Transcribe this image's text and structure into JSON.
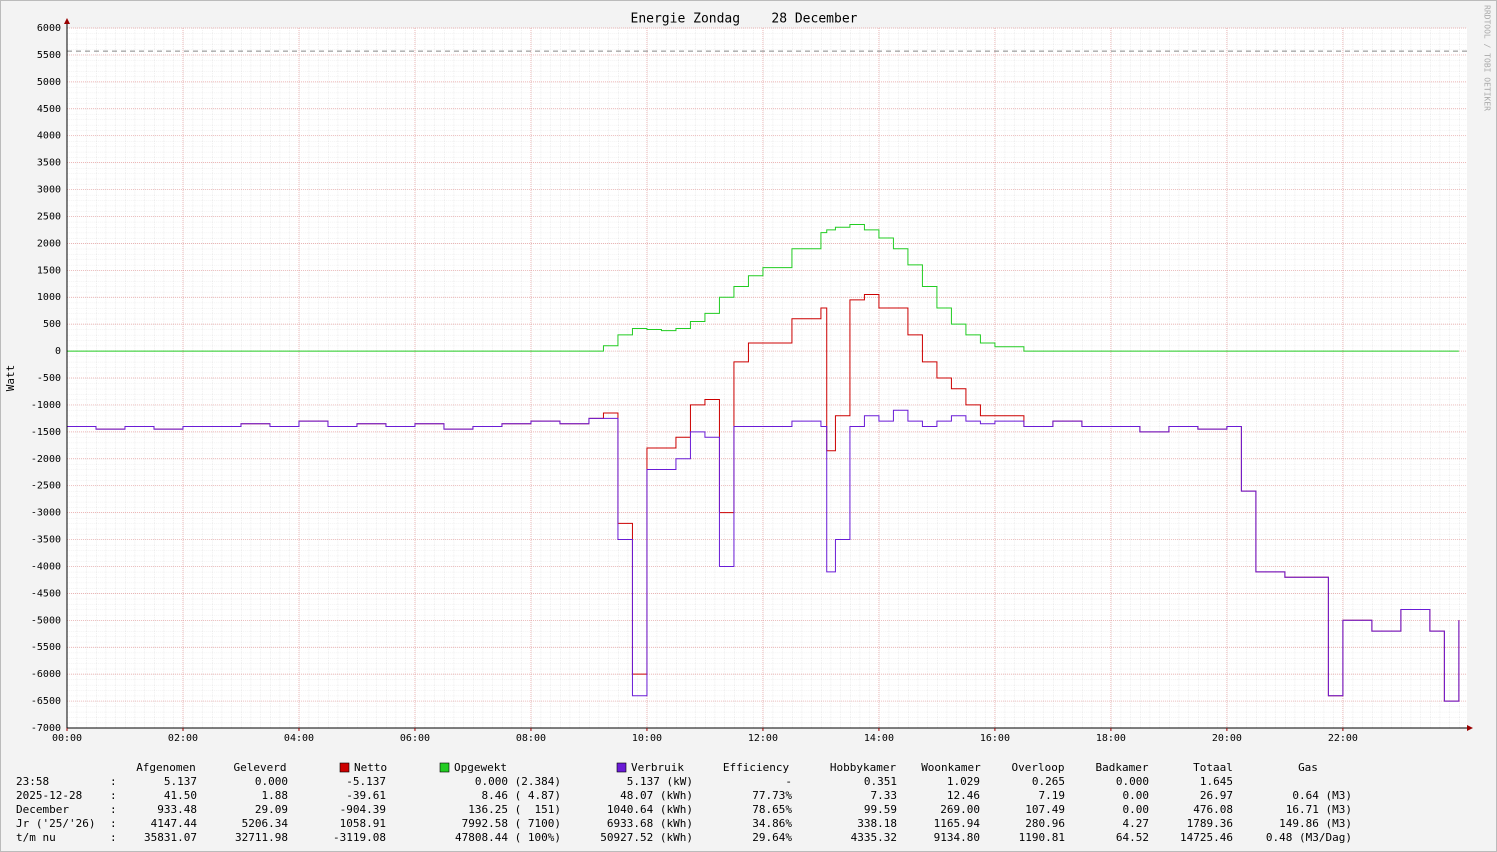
{
  "chart_data": {
    "type": "line",
    "step": true,
    "title": "Energie Zondag    28 December",
    "ylabel": "Watt",
    "watermark": "RRDTOOL / TOBI OETIKER",
    "xlim": [
      0,
      24.14
    ],
    "xticks": [
      {
        "value": 0,
        "label": "00:00"
      },
      {
        "value": 2,
        "label": "02:00"
      },
      {
        "value": 4,
        "label": "04:00"
      },
      {
        "value": 6,
        "label": "06:00"
      },
      {
        "value": 8,
        "label": "08:00"
      },
      {
        "value": 10,
        "label": "10:00"
      },
      {
        "value": 12,
        "label": "12:00"
      },
      {
        "value": 14,
        "label": "14:00"
      },
      {
        "value": 16,
        "label": "16:00"
      },
      {
        "value": 18,
        "label": "18:00"
      },
      {
        "value": 20,
        "label": "20:00"
      },
      {
        "value": 22,
        "label": "22:00"
      }
    ],
    "ylim": [
      -7000,
      6000
    ],
    "yticks": [
      -7000,
      -6500,
      -6000,
      -5500,
      -5000,
      -4500,
      -4000,
      -3500,
      -3000,
      -2500,
      -2000,
      -1500,
      -1000,
      -500,
      0,
      500,
      1000,
      1500,
      2000,
      2500,
      3000,
      3500,
      4000,
      4500,
      5000,
      5500,
      6000
    ],
    "grid": true,
    "reference_line": 5570,
    "x": [
      0,
      0.5,
      1,
      1.5,
      2,
      2.5,
      3,
      3.5,
      4,
      4.5,
      5,
      5.5,
      6,
      6.5,
      7,
      7.5,
      8,
      8.5,
      9,
      9.25,
      9.5,
      9.75,
      10,
      10.25,
      10.5,
      10.75,
      11,
      11.25,
      11.5,
      11.75,
      12,
      12.5,
      13,
      13.1,
      13.25,
      13.5,
      13.75,
      14,
      14.25,
      14.5,
      14.75,
      15,
      15.25,
      15.5,
      15.75,
      16,
      16.5,
      17,
      17.5,
      18,
      18.5,
      19,
      19.5,
      20,
      20.25,
      20.5,
      21,
      21.5,
      21.75,
      22,
      22.5,
      23,
      23.5,
      23.75,
      24
    ],
    "series": [
      {
        "name": "Netto",
        "color": "#cc0000",
        "values": [
          -1400,
          -1450,
          -1400,
          -1450,
          -1400,
          -1400,
          -1350,
          -1400,
          -1300,
          -1400,
          -1350,
          -1400,
          -1350,
          -1450,
          -1400,
          -1350,
          -1300,
          -1350,
          -1250,
          -1150,
          -3200,
          -6000,
          -1800,
          -1800,
          -1600,
          -1000,
          -900,
          -3000,
          -200,
          150,
          150,
          600,
          800,
          -1850,
          -1200,
          950,
          1050,
          800,
          800,
          300,
          -200,
          -500,
          -700,
          -1000,
          -1200,
          -1200,
          -1400,
          -1300,
          -1400,
          -1400,
          -1500,
          -1400,
          -1450,
          -1400,
          -2600,
          -4100,
          -4200,
          -4200,
          -6400,
          -5000,
          -5200,
          -4800,
          -5200,
          -6500,
          -5000
        ]
      },
      {
        "name": "Opgewekt",
        "color": "#22cc22",
        "values": [
          0,
          0,
          0,
          0,
          0,
          0,
          0,
          0,
          0,
          0,
          0,
          0,
          0,
          0,
          0,
          0,
          0,
          0,
          0,
          100,
          300,
          420,
          400,
          380,
          420,
          550,
          700,
          1000,
          1200,
          1400,
          1550,
          1900,
          2200,
          2250,
          2300,
          2350,
          2250,
          2100,
          1900,
          1600,
          1200,
          800,
          500,
          300,
          150,
          80,
          0,
          0,
          0,
          0,
          0,
          0,
          0,
          0,
          0,
          0,
          0,
          0,
          0,
          0,
          0,
          0,
          0,
          0,
          0
        ]
      },
      {
        "name": "Verbruik",
        "color": "#6a1bd6",
        "values": [
          -1400,
          -1450,
          -1400,
          -1450,
          -1400,
          -1400,
          -1350,
          -1400,
          -1300,
          -1400,
          -1350,
          -1400,
          -1350,
          -1450,
          -1400,
          -1350,
          -1300,
          -1350,
          -1250,
          -1250,
          -3500,
          -6400,
          -2200,
          -2200,
          -2000,
          -1500,
          -1600,
          -4000,
          -1400,
          -1400,
          -1400,
          -1300,
          -1400,
          -4100,
          -3500,
          -1400,
          -1200,
          -1300,
          -1100,
          -1300,
          -1400,
          -1300,
          -1200,
          -1300,
          -1350,
          -1300,
          -1400,
          -1300,
          -1400,
          -1400,
          -1500,
          -1400,
          -1450,
          -1400,
          -2600,
          -4100,
          -4200,
          -4200,
          -6400,
          -5000,
          -5200,
          -4800,
          -5200,
          -6500,
          -5000
        ]
      }
    ]
  },
  "table": {
    "header": [
      "Afgenomen",
      "Geleverd",
      "Efficiency",
      "Hobbykamer",
      "Woonkamer",
      "Overloop",
      "Badkamer",
      "Totaal",
      "Gas"
    ],
    "separator": ":",
    "rows": [
      {
        "label": "23:58",
        "cells": [
          "5.137",
          "0.000",
          "-5.137",
          "0.000 (2.384)",
          "5.137 (kW)",
          "-",
          "0.351",
          "1.029",
          "0.265",
          "0.000",
          "1.645"
        ]
      },
      {
        "label": "2025-12-28",
        "cells": [
          "41.50",
          "1.88",
          "-39.61",
          "8.46 ( 4.87)",
          "48.07 (kWh)",
          "77.73%",
          "7.33",
          "12.46",
          "7.19",
          "0.00",
          "26.97",
          "0.64 (M3)"
        ]
      },
      {
        "label": "December",
        "cells": [
          "933.48",
          "29.09",
          "-904.39",
          "136.25 (  151)",
          "1040.64 (kWh)",
          "78.65%",
          "99.59",
          "269.00",
          "107.49",
          "0.00",
          "476.08",
          "16.71 (M3)"
        ]
      },
      {
        "label": "Jr ('25/'26)",
        "cells": [
          "4147.44",
          "5206.34",
          "1058.91",
          "7992.58 ( 7100)",
          "6933.68 (kWh)",
          "34.86%",
          "338.18",
          "1165.94",
          "280.96",
          "4.27",
          "1789.36",
          "149.86 (M3)"
        ]
      },
      {
        "label": "t/m nu",
        "cells": [
          "35831.07",
          "32711.98",
          "-3119.08",
          "47808.44 ( 100%)",
          "50927.52 (kWh)",
          "29.64%",
          "4335.32",
          "9134.80",
          "1190.81",
          "64.52",
          "14725.46",
          "0.48 (M3/Dag)"
        ]
      }
    ]
  }
}
